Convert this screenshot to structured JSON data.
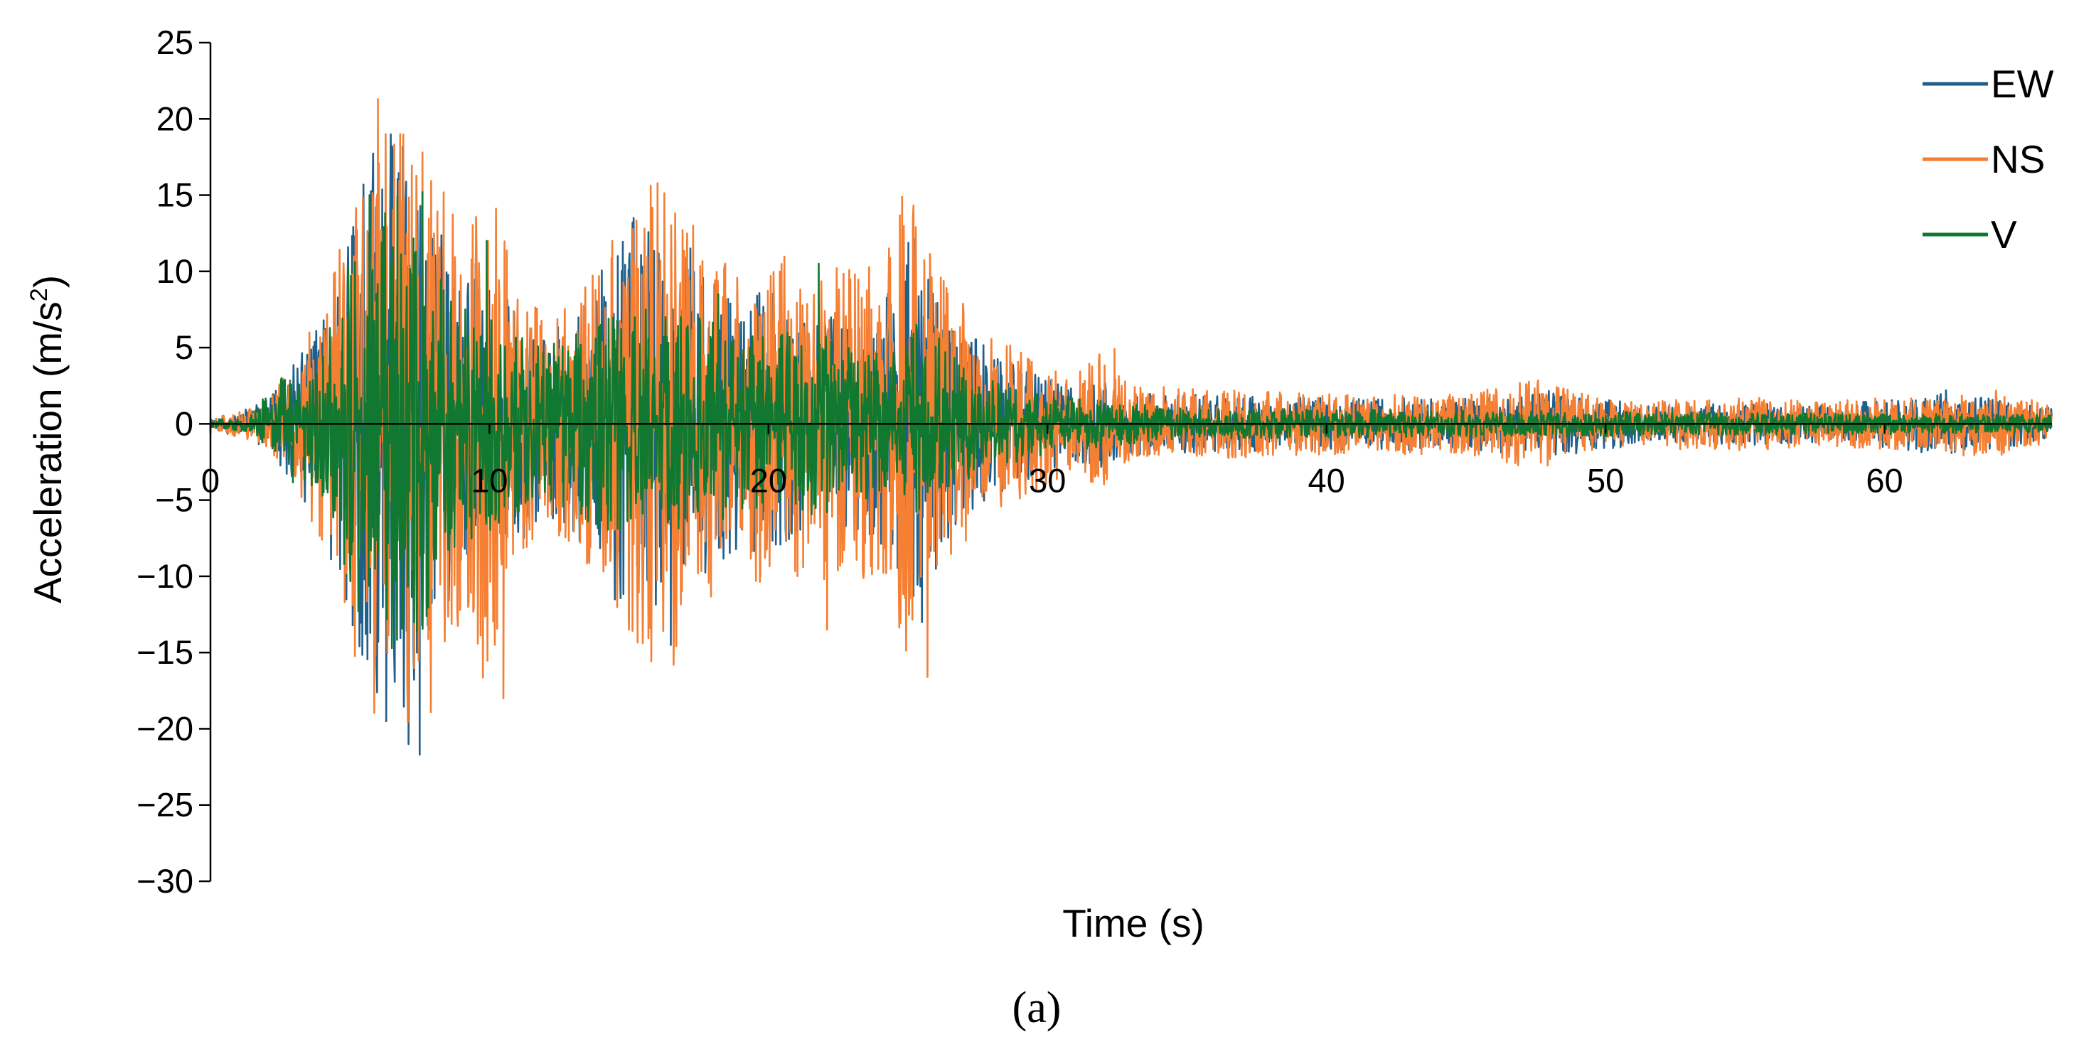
{
  "chart_data": {
    "type": "line",
    "xlabel": "Time (s)",
    "ylabel_main": "Acceleration (m/s",
    "ylabel_sup": "2",
    "ylabel_tail": ")",
    "xlim": [
      0,
      66
    ],
    "ylim": [
      -30,
      25
    ],
    "x_ticks": [
      0,
      10,
      20,
      30,
      40,
      50,
      60
    ],
    "x_tick_labels": [
      "0",
      "10",
      "20",
      "30",
      "40",
      "50",
      "60"
    ],
    "y_ticks": [
      25,
      20,
      15,
      10,
      5,
      0,
      -5,
      -10,
      -15,
      -20,
      -25,
      -30
    ],
    "y_tick_labels": [
      "25",
      "20",
      "15",
      "10",
      "5",
      "0",
      "−5",
      "−10",
      "−15",
      "−20",
      "−25",
      "−30"
    ],
    "grid": false,
    "legend_position": "top-right",
    "caption": "(a)",
    "series": [
      {
        "name": "EW",
        "color": "#1F5F8B",
        "envelope": [
          [
            0,
            0.3
          ],
          [
            2,
            1.5
          ],
          [
            3,
            4
          ],
          [
            4,
            7
          ],
          [
            5,
            13
          ],
          [
            6,
            19
          ],
          [
            7,
            21
          ],
          [
            8,
            14
          ],
          [
            9,
            10
          ],
          [
            10,
            9
          ],
          [
            11,
            8
          ],
          [
            12,
            6
          ],
          [
            13,
            7
          ],
          [
            14,
            10
          ],
          [
            15,
            14
          ],
          [
            16,
            12
          ],
          [
            17,
            11
          ],
          [
            18,
            10
          ],
          [
            19,
            8
          ],
          [
            20,
            9
          ],
          [
            21,
            8
          ],
          [
            22,
            7
          ],
          [
            23,
            7
          ],
          [
            24,
            8
          ],
          [
            25,
            13
          ],
          [
            26,
            9
          ],
          [
            27,
            6
          ],
          [
            28,
            5
          ],
          [
            29,
            4
          ],
          [
            30,
            3
          ],
          [
            31,
            2.5
          ],
          [
            32,
            3
          ],
          [
            33,
            2
          ],
          [
            40,
            1.7
          ],
          [
            45,
            1.7
          ],
          [
            48,
            2.2
          ],
          [
            52,
            1.2
          ],
          [
            55,
            1.4
          ],
          [
            58,
            1.2
          ],
          [
            62,
            2.0
          ],
          [
            64,
            1.8
          ],
          [
            66,
            1.0
          ]
        ],
        "peaks": [
          [
            6.3,
            -19.5
          ],
          [
            7.1,
            -21
          ],
          [
            7.5,
            -21.7
          ],
          [
            5.6,
            -13
          ],
          [
            16.5,
            -14.5
          ],
          [
            25.5,
            -13
          ],
          [
            26.0,
            -9.5
          ],
          [
            15.0,
            -13
          ],
          [
            19.7,
            -10
          ],
          [
            14.6,
            11
          ],
          [
            17.2,
            11.5
          ],
          [
            9.5,
            10.5
          ],
          [
            7.4,
            -15
          ],
          [
            62.2,
            2.2
          ]
        ]
      },
      {
        "name": "NS",
        "color": "#F57F33",
        "envelope": [
          [
            0,
            0.3
          ],
          [
            2,
            1.5
          ],
          [
            3,
            4
          ],
          [
            4,
            8
          ],
          [
            5,
            14
          ],
          [
            6,
            21
          ],
          [
            7,
            20
          ],
          [
            8,
            17
          ],
          [
            9,
            13
          ],
          [
            10,
            18
          ],
          [
            11,
            10
          ],
          [
            12,
            7
          ],
          [
            13,
            8
          ],
          [
            14,
            12
          ],
          [
            15,
            15
          ],
          [
            16,
            16
          ],
          [
            17,
            14
          ],
          [
            18,
            12
          ],
          [
            19,
            10
          ],
          [
            20,
            11
          ],
          [
            21,
            11
          ],
          [
            22,
            11
          ],
          [
            23,
            10
          ],
          [
            24,
            11
          ],
          [
            25,
            16
          ],
          [
            26,
            11
          ],
          [
            27,
            8
          ],
          [
            28,
            6
          ],
          [
            29,
            5
          ],
          [
            30,
            4
          ],
          [
            31,
            3.5
          ],
          [
            32,
            5
          ],
          [
            33,
            2.5
          ],
          [
            40,
            2
          ],
          [
            45,
            2
          ],
          [
            47.5,
            3
          ],
          [
            50,
            1.5
          ],
          [
            55,
            1.8
          ],
          [
            58,
            1.5
          ],
          [
            62,
            2
          ],
          [
            64,
            2.2
          ],
          [
            66,
            1.2
          ]
        ],
        "peaks": [
          [
            6.0,
            21.3
          ],
          [
            6.8,
            19
          ],
          [
            7.6,
            17.8
          ],
          [
            10.5,
            -18
          ],
          [
            7.9,
            -18.9
          ],
          [
            5.9,
            -15
          ],
          [
            15.0,
            -13.5
          ],
          [
            16.6,
            -15.8
          ],
          [
            25.7,
            -16.6
          ],
          [
            22.1,
            -13.5
          ],
          [
            17.3,
            13
          ],
          [
            14.4,
            12
          ],
          [
            25.8,
            9.5
          ],
          [
            32.4,
            4.9
          ],
          [
            10.2,
            8.5
          ]
        ]
      },
      {
        "name": "V",
        "color": "#107830",
        "envelope": [
          [
            0,
            0.2
          ],
          [
            1.5,
            0.6
          ],
          [
            2,
            2
          ],
          [
            3,
            4
          ],
          [
            4,
            5
          ],
          [
            5,
            11
          ],
          [
            5.5,
            15
          ],
          [
            6,
            14.5
          ],
          [
            7,
            15
          ],
          [
            7.5,
            15
          ],
          [
            8,
            11
          ],
          [
            9,
            8
          ],
          [
            10,
            7
          ],
          [
            11,
            6
          ],
          [
            12,
            5
          ],
          [
            13,
            6
          ],
          [
            14,
            7
          ],
          [
            15,
            7
          ],
          [
            16,
            7
          ],
          [
            17,
            7
          ],
          [
            18,
            7
          ],
          [
            19,
            6
          ],
          [
            20,
            6
          ],
          [
            21,
            6
          ],
          [
            22,
            6
          ],
          [
            23,
            5
          ],
          [
            24,
            5
          ],
          [
            25,
            6
          ],
          [
            26,
            6
          ],
          [
            27,
            4
          ],
          [
            28,
            3
          ],
          [
            29,
            2.5
          ],
          [
            30,
            2
          ],
          [
            32,
            1.5
          ],
          [
            35,
            1
          ],
          [
            66,
            0.6
          ]
        ],
        "peaks": [
          [
            5.7,
            15
          ],
          [
            6.7,
            14.9
          ],
          [
            7.6,
            15.2
          ],
          [
            9.9,
            12
          ],
          [
            21.8,
            10.5
          ],
          [
            18.2,
            8.5
          ],
          [
            5.9,
            -9.5
          ],
          [
            7.3,
            -13
          ],
          [
            8.0,
            -8
          ],
          [
            15.6,
            7.5
          ],
          [
            25.3,
            6.5
          ],
          [
            4.2,
            -4.5
          ],
          [
            22.1,
            -5.8
          ]
        ]
      }
    ]
  }
}
